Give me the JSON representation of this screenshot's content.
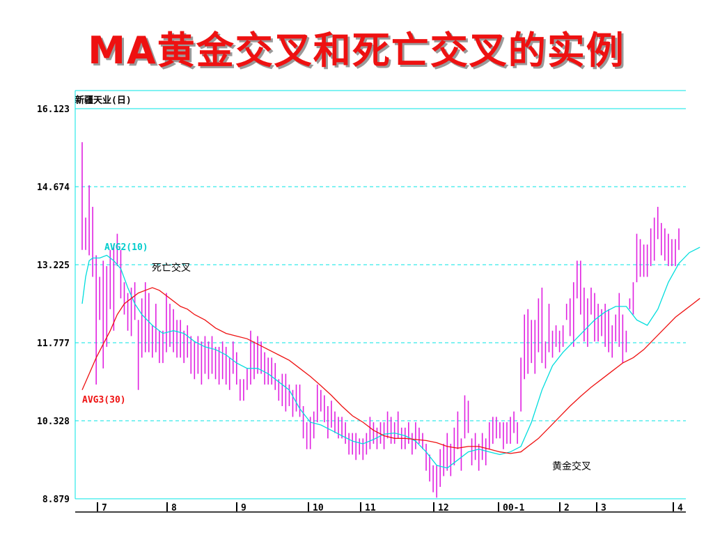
{
  "slide": {
    "title": "MA黄金交叉和死亡交叉的实例",
    "title_color": "#ee1111"
  },
  "chart_data": {
    "type": "candlestick",
    "stock_name": "新疆天业(日)",
    "ylim": [
      8.879,
      16.123
    ],
    "y_ticks": [
      "16.123",
      "14.674",
      "13.225",
      "11.777",
      "10.328",
      "8.879"
    ],
    "x_ticks": [
      "7",
      "8",
      "9",
      "10",
      "11",
      "12",
      "00-1",
      "2",
      "3",
      "4"
    ],
    "grid": "dashed horizontal",
    "colors": {
      "grid": "#00e5e5",
      "bars": "#e020e0",
      "ma10": "#00dddd",
      "ma30": "#ee1111"
    },
    "bars": [
      [
        13.5,
        15.5
      ],
      [
        13.5,
        14.1
      ],
      [
        13.4,
        14.7
      ],
      [
        13.0,
        14.3
      ],
      [
        11.0,
        13.4
      ],
      [
        12.2,
        13.0
      ],
      [
        11.3,
        13.3
      ],
      [
        11.7,
        13.2
      ],
      [
        12.4,
        13.5
      ],
      [
        12.0,
        13.6
      ],
      [
        13.2,
        13.8
      ],
      [
        12.6,
        13.5
      ],
      [
        12.3,
        12.9
      ],
      [
        12.0,
        12.7
      ],
      [
        11.9,
        12.8
      ],
      [
        12.2,
        12.9
      ],
      [
        10.9,
        12.2
      ],
      [
        11.5,
        12.6
      ],
      [
        11.6,
        12.9
      ],
      [
        11.6,
        12.7
      ],
      [
        11.5,
        12.1
      ],
      [
        11.6,
        12.5
      ],
      [
        11.4,
        12.0
      ],
      [
        11.4,
        12.0
      ],
      [
        11.6,
        12.7
      ],
      [
        11.7,
        12.5
      ],
      [
        11.6,
        12.4
      ],
      [
        11.5,
        12.2
      ],
      [
        11.5,
        12.2
      ],
      [
        11.4,
        12.0
      ],
      [
        11.5,
        12.1
      ],
      [
        11.2,
        11.9
      ],
      [
        11.1,
        11.8
      ],
      [
        11.2,
        11.9
      ],
      [
        11.0,
        11.8
      ],
      [
        11.2,
        11.9
      ],
      [
        11.1,
        11.8
      ],
      [
        11.2,
        11.9
      ],
      [
        11.1,
        11.7
      ],
      [
        11.0,
        11.7
      ],
      [
        11.1,
        11.8
      ],
      [
        11.0,
        11.7
      ],
      [
        10.9,
        11.5
      ],
      [
        11.2,
        11.8
      ],
      [
        11.0,
        11.6
      ],
      [
        10.7,
        11.1
      ],
      [
        10.7,
        11.1
      ],
      [
        10.9,
        11.3
      ],
      [
        11.0,
        12.0
      ],
      [
        11.1,
        11.8
      ],
      [
        11.2,
        11.9
      ],
      [
        11.2,
        11.8
      ],
      [
        11.0,
        11.6
      ],
      [
        11.0,
        11.5
      ],
      [
        11.0,
        11.5
      ],
      [
        10.9,
        11.4
      ],
      [
        10.7,
        11.1
      ],
      [
        10.6,
        11.2
      ],
      [
        10.5,
        11.2
      ],
      [
        10.6,
        11.0
      ],
      [
        10.4,
        10.9
      ],
      [
        10.5,
        11.0
      ],
      [
        10.4,
        11.0
      ],
      [
        10.0,
        10.6
      ],
      [
        9.8,
        10.3
      ],
      [
        9.8,
        10.4
      ],
      [
        10.0,
        10.5
      ],
      [
        10.3,
        11.0
      ],
      [
        10.5,
        10.9
      ],
      [
        10.3,
        10.8
      ],
      [
        10.0,
        10.6
      ],
      [
        10.2,
        10.7
      ],
      [
        10.1,
        10.5
      ],
      [
        10.0,
        10.4
      ],
      [
        10.0,
        10.4
      ],
      [
        9.9,
        10.3
      ],
      [
        9.7,
        10.1
      ],
      [
        9.7,
        10.1
      ],
      [
        9.6,
        10.1
      ],
      [
        9.7,
        10.0
      ],
      [
        9.6,
        10.0
      ],
      [
        9.7,
        10.1
      ],
      [
        9.8,
        10.4
      ],
      [
        9.9,
        10.3
      ],
      [
        9.8,
        10.2
      ],
      [
        9.9,
        10.3
      ],
      [
        9.8,
        10.3
      ],
      [
        10.0,
        10.5
      ],
      [
        9.9,
        10.4
      ],
      [
        9.9,
        10.3
      ],
      [
        10.0,
        10.5
      ],
      [
        9.8,
        10.2
      ],
      [
        9.8,
        10.2
      ],
      [
        9.9,
        10.3
      ],
      [
        9.7,
        10.1
      ],
      [
        9.8,
        10.3
      ],
      [
        9.9,
        10.2
      ],
      [
        9.8,
        10.1
      ],
      [
        9.4,
        9.9
      ],
      [
        9.2,
        9.7
      ],
      [
        9.0,
        9.5
      ],
      [
        8.9,
        9.5
      ],
      [
        9.1,
        9.8
      ],
      [
        9.3,
        9.9
      ],
      [
        9.4,
        10.1
      ],
      [
        9.3,
        9.9
      ],
      [
        9.5,
        10.2
      ],
      [
        9.8,
        10.5
      ],
      [
        9.4,
        10.0
      ],
      [
        10.0,
        10.8
      ],
      [
        10.1,
        10.7
      ],
      [
        9.5,
        10.0
      ],
      [
        9.6,
        10.1
      ],
      [
        9.4,
        9.9
      ],
      [
        9.6,
        10.1
      ],
      [
        9.5,
        10.0
      ],
      [
        9.8,
        10.3
      ],
      [
        9.9,
        10.4
      ],
      [
        10.0,
        10.4
      ],
      [
        10.0,
        10.3
      ],
      [
        9.8,
        10.3
      ],
      [
        9.9,
        10.3
      ],
      [
        9.9,
        10.4
      ],
      [
        10.1,
        10.5
      ],
      [
        9.9,
        10.3
      ],
      [
        10.5,
        11.5
      ],
      [
        11.1,
        12.3
      ],
      [
        11.2,
        12.4
      ],
      [
        11.4,
        12.2
      ],
      [
        11.2,
        12.2
      ],
      [
        11.6,
        12.6
      ],
      [
        11.4,
        12.8
      ],
      [
        11.3,
        11.8
      ],
      [
        11.6,
        12.5
      ],
      [
        11.5,
        12.0
      ],
      [
        11.7,
        12.1
      ],
      [
        11.6,
        12.0
      ],
      [
        11.7,
        12.1
      ],
      [
        12.2,
        12.5
      ],
      [
        11.9,
        12.6
      ],
      [
        11.7,
        12.9
      ],
      [
        12.6,
        13.3
      ],
      [
        12.3,
        13.3
      ],
      [
        11.8,
        12.8
      ],
      [
        11.7,
        12.6
      ],
      [
        12.3,
        12.8
      ],
      [
        11.8,
        12.7
      ],
      [
        11.8,
        12.5
      ],
      [
        11.9,
        12.4
      ],
      [
        11.7,
        12.5
      ],
      [
        11.6,
        12.4
      ],
      [
        11.5,
        12.1
      ],
      [
        11.8,
        12.3
      ],
      [
        11.7,
        12.7
      ],
      [
        11.4,
        12.3
      ],
      [
        11.6,
        12.0
      ],
      [
        12.4,
        12.6
      ],
      [
        12.3,
        12.9
      ],
      [
        12.9,
        13.8
      ],
      [
        13.0,
        13.7
      ],
      [
        13.0,
        13.6
      ],
      [
        13.0,
        13.6
      ],
      [
        13.2,
        13.9
      ],
      [
        13.3,
        14.1
      ],
      [
        13.7,
        14.3
      ],
      [
        13.4,
        14.0
      ],
      [
        13.3,
        13.9
      ],
      [
        13.2,
        13.8
      ],
      [
        13.2,
        13.7
      ],
      [
        13.2,
        13.7
      ],
      [
        13.5,
        13.9
      ]
    ],
    "ma10": [
      [
        0,
        12.5
      ],
      [
        1,
        13.0
      ],
      [
        2,
        13.3
      ],
      [
        3,
        13.35
      ],
      [
        5,
        13.35
      ],
      [
        7,
        13.4
      ],
      [
        9,
        13.3
      ],
      [
        11,
        13.15
      ],
      [
        13,
        12.8
      ],
      [
        15,
        12.5
      ],
      [
        17,
        12.3
      ],
      [
        20,
        12.1
      ],
      [
        23,
        11.95
      ],
      [
        26,
        12.0
      ],
      [
        29,
        11.95
      ],
      [
        32,
        11.8
      ],
      [
        35,
        11.7
      ],
      [
        38,
        11.65
      ],
      [
        41,
        11.55
      ],
      [
        44,
        11.4
      ],
      [
        47,
        11.3
      ],
      [
        50,
        11.3
      ],
      [
        53,
        11.2
      ],
      [
        56,
        11.05
      ],
      [
        59,
        10.9
      ],
      [
        62,
        10.55
      ],
      [
        65,
        10.3
      ],
      [
        68,
        10.25
      ],
      [
        71,
        10.15
      ],
      [
        74,
        10.05
      ],
      [
        77,
        9.95
      ],
      [
        80,
        9.9
      ],
      [
        83,
        9.98
      ],
      [
        86,
        10.08
      ],
      [
        89,
        10.1
      ],
      [
        92,
        10.05
      ],
      [
        95,
        9.95
      ],
      [
        98,
        9.75
      ],
      [
        101,
        9.5
      ],
      [
        104,
        9.45
      ],
      [
        107,
        9.6
      ],
      [
        110,
        9.75
      ],
      [
        113,
        9.8
      ],
      [
        116,
        9.75
      ],
      [
        119,
        9.7
      ],
      [
        122,
        9.75
      ],
      [
        125,
        9.85
      ],
      [
        128,
        10.3
      ],
      [
        131,
        10.9
      ],
      [
        134,
        11.35
      ],
      [
        137,
        11.6
      ],
      [
        140,
        11.8
      ],
      [
        143,
        12.0
      ],
      [
        146,
        12.2
      ],
      [
        149,
        12.35
      ],
      [
        152,
        12.45
      ],
      [
        155,
        12.45
      ],
      [
        158,
        12.2
      ],
      [
        161,
        12.1
      ],
      [
        164,
        12.4
      ],
      [
        167,
        12.9
      ],
      [
        170,
        13.25
      ],
      [
        173,
        13.45
      ],
      [
        176,
        13.55
      ]
    ],
    "ma30": [
      [
        0,
        10.9
      ],
      [
        2,
        11.2
      ],
      [
        4,
        11.5
      ],
      [
        6,
        11.75
      ],
      [
        8,
        12.0
      ],
      [
        10,
        12.3
      ],
      [
        12,
        12.5
      ],
      [
        14,
        12.6
      ],
      [
        16,
        12.7
      ],
      [
        18,
        12.75
      ],
      [
        20,
        12.8
      ],
      [
        22,
        12.75
      ],
      [
        24,
        12.65
      ],
      [
        26,
        12.55
      ],
      [
        28,
        12.45
      ],
      [
        30,
        12.4
      ],
      [
        32,
        12.3
      ],
      [
        35,
        12.2
      ],
      [
        38,
        12.05
      ],
      [
        41,
        11.95
      ],
      [
        44,
        11.9
      ],
      [
        47,
        11.85
      ],
      [
        50,
        11.75
      ],
      [
        53,
        11.65
      ],
      [
        56,
        11.55
      ],
      [
        59,
        11.45
      ],
      [
        62,
        11.3
      ],
      [
        65,
        11.15
      ],
      [
        68,
        10.98
      ],
      [
        71,
        10.8
      ],
      [
        74,
        10.6
      ],
      [
        77,
        10.42
      ],
      [
        80,
        10.3
      ],
      [
        83,
        10.15
      ],
      [
        86,
        10.05
      ],
      [
        89,
        10.0
      ],
      [
        92,
        10.0
      ],
      [
        95,
        9.98
      ],
      [
        98,
        9.96
      ],
      [
        101,
        9.92
      ],
      [
        104,
        9.85
      ],
      [
        107,
        9.82
      ],
      [
        110,
        9.85
      ],
      [
        113,
        9.85
      ],
      [
        116,
        9.8
      ],
      [
        119,
        9.75
      ],
      [
        122,
        9.72
      ],
      [
        125,
        9.75
      ],
      [
        127,
        9.85
      ],
      [
        130,
        10.0
      ],
      [
        133,
        10.2
      ],
      [
        136,
        10.4
      ],
      [
        139,
        10.6
      ],
      [
        142,
        10.78
      ],
      [
        145,
        10.95
      ],
      [
        148,
        11.1
      ],
      [
        151,
        11.25
      ],
      [
        154,
        11.4
      ],
      [
        157,
        11.5
      ],
      [
        160,
        11.65
      ],
      [
        163,
        11.85
      ],
      [
        166,
        12.05
      ],
      [
        169,
        12.25
      ],
      [
        172,
        12.4
      ],
      [
        174,
        12.5
      ],
      [
        176,
        12.6
      ]
    ],
    "labels": {
      "ma10": "AVG2(10)",
      "ma30": "AVG3(30)",
      "death_cross": "死亡交叉",
      "golden_cross": "黄金交叉"
    }
  }
}
